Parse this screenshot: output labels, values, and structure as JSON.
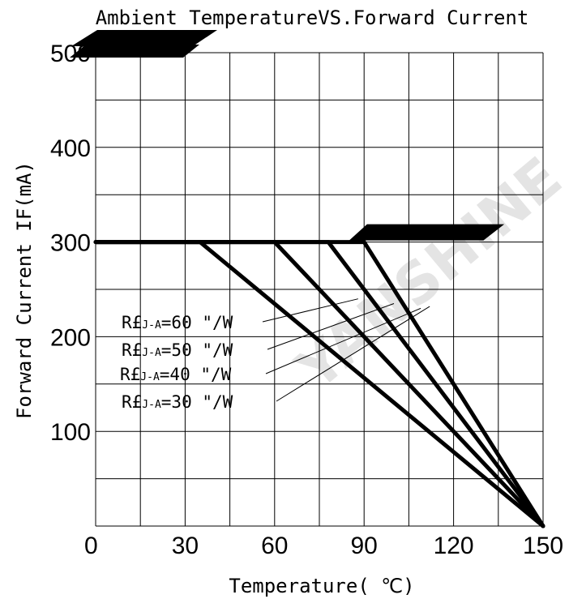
{
  "chart_data": {
    "type": "line",
    "title": "Ambient TemperatureVS.Forward Current",
    "xlabel": "Temperature(  ℃)",
    "ylabel": "Forward Current  IF(mA)",
    "xlim": [
      0,
      150
    ],
    "ylim": [
      0,
      500
    ],
    "xticks": [
      "0",
      "30",
      "60",
      "90",
      "120",
      "150"
    ],
    "yticks": [
      "100",
      "200",
      "300",
      "400",
      "500"
    ],
    "grid": true,
    "series": [
      {
        "name": "R£J-A=60 \"/W",
        "x": [
          0,
          35,
          150
        ],
        "y": [
          300,
          300,
          0
        ]
      },
      {
        "name": "R£J-A=50 \"/W",
        "x": [
          0,
          60,
          150
        ],
        "y": [
          300,
          300,
          0
        ]
      },
      {
        "name": "R£J-A=40 \"/W",
        "x": [
          0,
          78,
          150
        ],
        "y": [
          300,
          300,
          0
        ]
      },
      {
        "name": "R£J-A=30 \"/W",
        "x": [
          0,
          90,
          150
        ],
        "y": [
          300,
          300,
          0
        ]
      }
    ],
    "legend": [
      {
        "prefix": "R£",
        "sub": "J-A",
        "value": "=60 \"/W"
      },
      {
        "prefix": "R£",
        "sub": "J-A",
        "value": "=50 \"/W"
      },
      {
        "prefix": "R£",
        "sub": "J-A",
        "value": "=40 \"/W"
      },
      {
        "prefix": "R£",
        "sub": "J-A",
        "value": "=30 \"/W"
      }
    ]
  }
}
